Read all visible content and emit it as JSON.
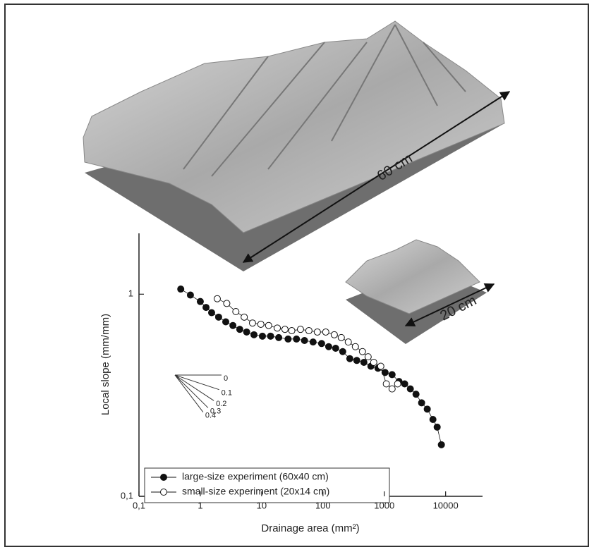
{
  "chart_data": {
    "type": "scatter",
    "x_label": "Drainage area (mm²)",
    "y_label": "Local slope (mm/mm)",
    "xlog": true,
    "ylog": true,
    "xlim": [
      0.1,
      40000
    ],
    "ylim": [
      0.1,
      2
    ],
    "xticks": [
      {
        "value": 0.1,
        "label": "0,1"
      },
      1,
      10,
      100,
      1000,
      10000
    ],
    "yticks": [
      {
        "value": 0.1,
        "label": "0,1"
      },
      1
    ],
    "legend": "bottom-left",
    "series": [
      {
        "name": "large-size experiment (60x40 cm)",
        "color": "#111111",
        "fill": "#111111",
        "x": [
          0.48,
          0.69,
          1,
          1.24,
          1.53,
          1.99,
          2.6,
          3.4,
          4.4,
          5.7,
          7.5,
          10.3,
          14,
          19,
          27,
          37,
          50,
          69,
          95,
          124,
          161,
          210,
          274,
          356,
          465,
          605,
          790,
          1030,
          1340,
          1740,
          2150,
          2660,
          3290,
          4060,
          5020,
          6210,
          7280,
          8530
        ],
        "values": [
          1.06,
          0.99,
          0.92,
          0.86,
          0.81,
          0.77,
          0.73,
          0.7,
          0.67,
          0.65,
          0.63,
          0.62,
          0.62,
          0.61,
          0.6,
          0.6,
          0.59,
          0.58,
          0.57,
          0.55,
          0.54,
          0.52,
          0.48,
          0.47,
          0.46,
          0.44,
          0.43,
          0.41,
          0.4,
          0.37,
          0.36,
          0.34,
          0.32,
          0.29,
          0.27,
          0.24,
          0.22,
          0.18
        ]
      },
      {
        "name": "small-size experiment (20x14 cm)",
        "color": "#111111",
        "fill": "#ffffff",
        "x": [
          1.89,
          2.7,
          3.8,
          5.2,
          7.1,
          9.7,
          13,
          18,
          24,
          31,
          43,
          59,
          81,
          111,
          153,
          199,
          259,
          338,
          441,
          545,
          673,
          877,
          1080,
          1340,
          1650
        ],
        "values": [
          0.95,
          0.9,
          0.82,
          0.77,
          0.72,
          0.71,
          0.7,
          0.68,
          0.67,
          0.66,
          0.67,
          0.66,
          0.65,
          0.65,
          0.63,
          0.61,
          0.58,
          0.55,
          0.52,
          0.49,
          0.46,
          0.44,
          0.36,
          0.34,
          0.36
        ]
      }
    ],
    "slope_guide": [
      0,
      0.1,
      0.2,
      0.3,
      0.4
    ],
    "annotations": [
      "60 cm",
      "20 cm"
    ]
  }
}
